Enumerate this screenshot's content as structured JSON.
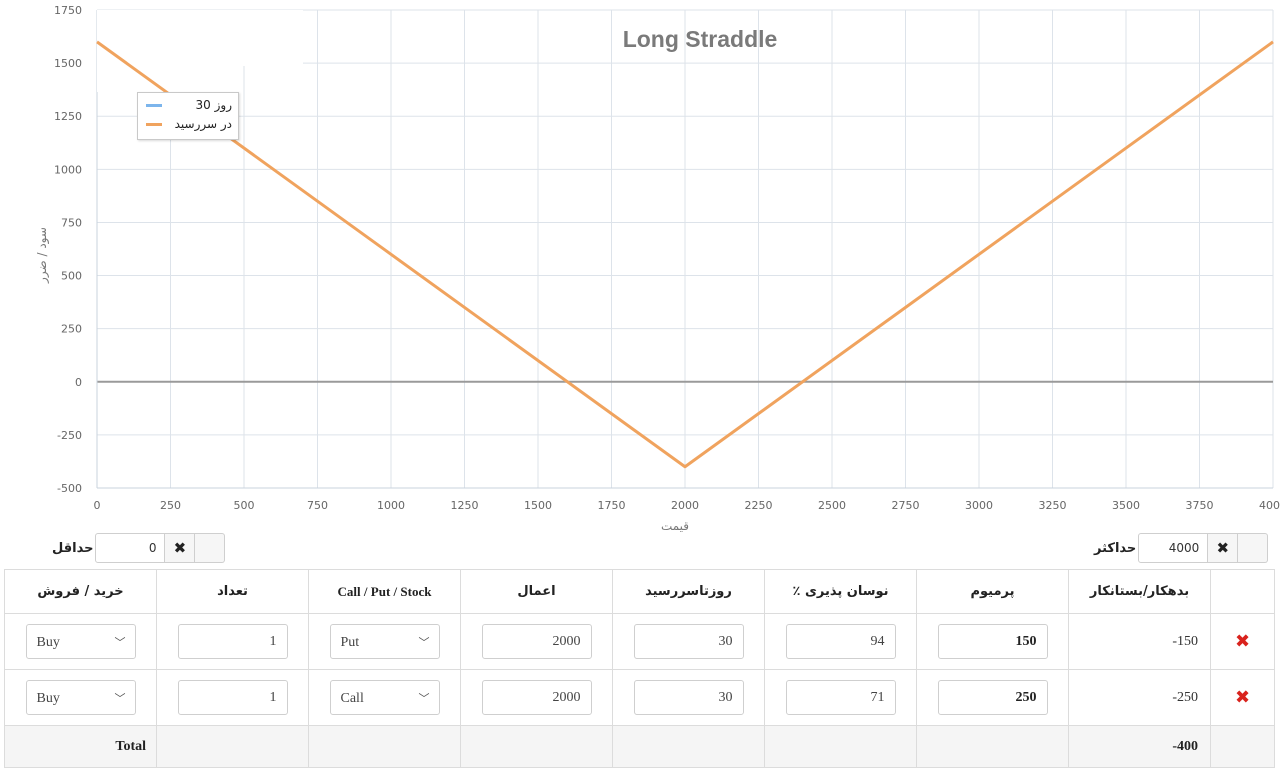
{
  "chart": {
    "title": "Long Straddle",
    "xlabel": "قیمت",
    "ylabel": "سود / ضرر",
    "legend": [
      {
        "label": "30 روز",
        "color": "#7cb5ec"
      },
      {
        "label": "در سررسید",
        "color": "#f0a35e"
      }
    ]
  },
  "chart_data": {
    "type": "line",
    "title": "Long Straddle",
    "xlabel": "قیمت",
    "ylabel": "سود / ضرر",
    "xlim": [
      0,
      4000
    ],
    "ylim": [
      -500,
      1750
    ],
    "x_ticks": [
      0,
      250,
      500,
      750,
      1000,
      1250,
      1500,
      1750,
      2000,
      2250,
      2500,
      2750,
      3000,
      3250,
      3500,
      3750,
      4000
    ],
    "y_ticks": [
      -500,
      -250,
      0,
      250,
      500,
      750,
      1000,
      1250,
      1500,
      1750
    ],
    "grid": true,
    "legend_position": "top-left",
    "series": [
      {
        "name": "30 روز",
        "color": "#7cb5ec",
        "x": [],
        "y": []
      },
      {
        "name": "در سررسید",
        "color": "#f0a35e",
        "x": [
          0,
          2000,
          4000
        ],
        "y": [
          1600,
          -400,
          1600
        ]
      }
    ]
  },
  "limits": {
    "max_label": "حداکثر",
    "max_value": "4000",
    "min_label": "حداقل",
    "min_value": "0",
    "clear_icon": "close-icon"
  },
  "table": {
    "headers": {
      "buy_sell": "خرید / فروش",
      "quantity": "تعداد",
      "type": "Call / Put / Stock",
      "strike": "اعمال",
      "days": "روزتاسررسید",
      "volatility": "٪ نوسان پذیری",
      "premium": "پرمیوم",
      "debit_credit": "بدهکار/بستانکار"
    },
    "rows": [
      {
        "side": "Buy",
        "quantity": "1",
        "type": "Put",
        "strike": "2000",
        "days": "30",
        "volatility": "94",
        "premium": "150",
        "value": "-150"
      },
      {
        "side": "Buy",
        "quantity": "1",
        "type": "Call",
        "strike": "2000",
        "days": "30",
        "volatility": "71",
        "premium": "250",
        "value": "-250"
      }
    ],
    "delete_icon": "✖",
    "total_label": "Total",
    "total_value": "-400"
  },
  "colors": {
    "at_expiry_line": "#f0a35e",
    "days_line": "#7cb5ec",
    "delete": "#d9231d"
  }
}
